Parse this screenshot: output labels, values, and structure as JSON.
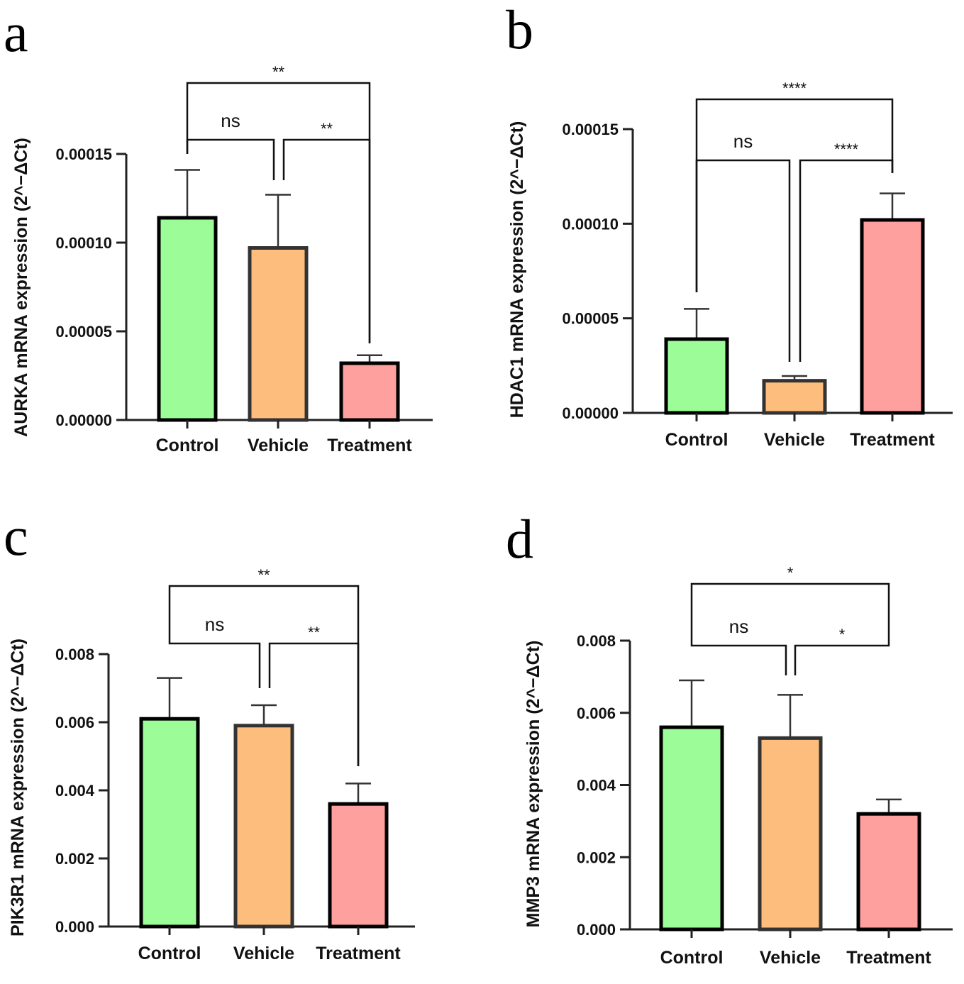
{
  "chart_data": [
    {
      "panel": "a",
      "type": "bar",
      "categories": [
        "Control",
        "Vehicle",
        "Treatment"
      ],
      "values": [
        0.000114,
        9.7e-05,
        3.2e-05
      ],
      "errors": [
        2.7e-05,
        3e-05,
        4.5e-06
      ],
      "ylabel": "AURKA mRNA expression (2^−ΔCt)",
      "ylim": [
        0,
        0.00015
      ],
      "yticks": [
        "0.00000",
        "0.00005",
        "0.00010",
        "0.00015"
      ],
      "comparisons": [
        {
          "between": [
            0,
            1
          ],
          "label": "ns"
        },
        {
          "between": [
            1,
            2
          ],
          "label": "**"
        },
        {
          "between": [
            0,
            2
          ],
          "label": "**"
        }
      ]
    },
    {
      "panel": "b",
      "type": "bar",
      "categories": [
        "Control",
        "Vehicle",
        "Treatment"
      ],
      "values": [
        3.9e-05,
        1.7e-05,
        0.000102
      ],
      "errors": [
        1.6e-05,
        2.5e-06,
        1.4e-05
      ],
      "ylabel": "HDAC1 mRNA expression (2^−ΔCt)",
      "ylim": [
        0,
        0.00015
      ],
      "yticks": [
        "0.00000",
        "0.00005",
        "0.00010",
        "0.00015"
      ],
      "comparisons": [
        {
          "between": [
            0,
            1
          ],
          "label": "ns"
        },
        {
          "between": [
            1,
            2
          ],
          "label": "****"
        },
        {
          "between": [
            0,
            2
          ],
          "label": "****"
        }
      ]
    },
    {
      "panel": "c",
      "type": "bar",
      "categories": [
        "Control",
        "Vehicle",
        "Treatment"
      ],
      "values": [
        0.0061,
        0.0059,
        0.0036
      ],
      "errors": [
        0.0012,
        0.0006,
        0.0006
      ],
      "ylabel": "PIK3R1 mRNA expression (2^−ΔCt)",
      "ylim": [
        0,
        0.008
      ],
      "yticks": [
        "0.000",
        "0.002",
        "0.004",
        "0.006",
        "0.008"
      ],
      "comparisons": [
        {
          "between": [
            0,
            1
          ],
          "label": "ns"
        },
        {
          "between": [
            1,
            2
          ],
          "label": "**"
        },
        {
          "between": [
            0,
            2
          ],
          "label": "**"
        }
      ]
    },
    {
      "panel": "d",
      "type": "bar",
      "categories": [
        "Control",
        "Vehicle",
        "Treatment"
      ],
      "values": [
        0.0056,
        0.0053,
        0.0032
      ],
      "errors": [
        0.0013,
        0.0012,
        0.0004
      ],
      "ylabel": "MMP3 mRNA expression (2^−ΔCt)",
      "ylim": [
        0,
        0.008
      ],
      "yticks": [
        "0.000",
        "0.002",
        "0.004",
        "0.006",
        "0.008"
      ],
      "comparisons": [
        {
          "between": [
            0,
            1
          ],
          "label": "ns"
        },
        {
          "between": [
            1,
            2
          ],
          "label": "*"
        },
        {
          "between": [
            0,
            2
          ],
          "label": "*"
        }
      ]
    }
  ],
  "colors": {
    "bar_fills": [
      "#9cfc98",
      "#fcbd7d",
      "#fda09e"
    ],
    "bar_strokes": [
      "#000000",
      "#333333",
      "#000000"
    ]
  }
}
